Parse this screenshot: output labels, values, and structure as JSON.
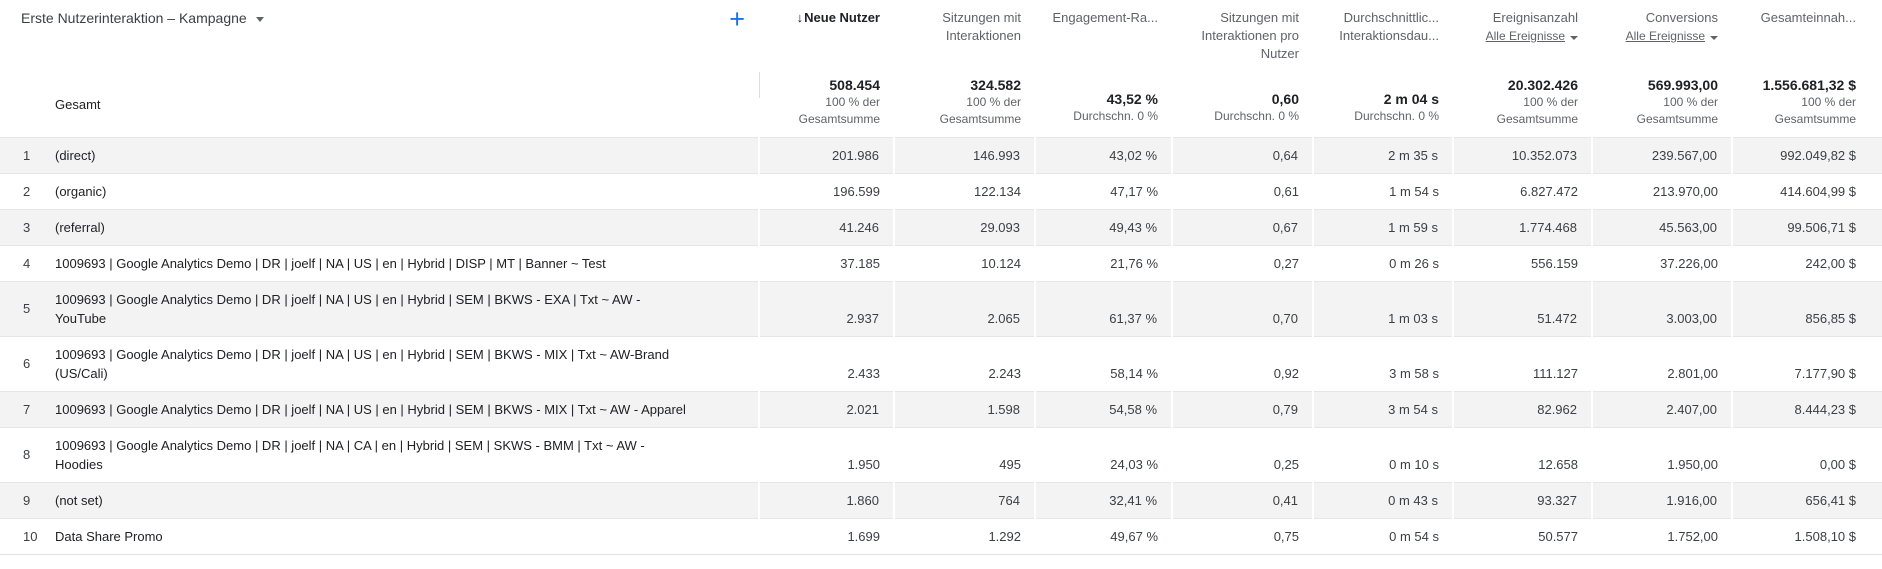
{
  "colors": {
    "accent_blue": "#1a73e8",
    "zebra_row": "#f3f3f3",
    "header_text": "#5f6368"
  },
  "icons": {
    "add": "+",
    "sort_desc": "↓"
  },
  "header": {
    "dimension_label": "Erste Nutzerinteraktion – Kampagne",
    "columns": [
      {
        "lines": [
          "Neue Nutzer"
        ],
        "sorted": true
      },
      {
        "lines": [
          "Sitzungen mit",
          "Interaktionen"
        ]
      },
      {
        "lines": [
          "Engagement-Ra..."
        ]
      },
      {
        "lines": [
          "Sitzungen mit",
          "Interaktionen pro",
          "Nutzer"
        ]
      },
      {
        "lines": [
          "Durchschnittlic...",
          "Interaktionsdau..."
        ]
      },
      {
        "lines": [
          "Ereignisanzahl"
        ],
        "filter": "Alle Ereignisse"
      },
      {
        "lines": [
          "Conversions"
        ],
        "filter": "Alle Ereignisse"
      },
      {
        "lines": [
          "Gesamteinnah..."
        ]
      }
    ]
  },
  "totals": {
    "label": "Gesamt",
    "metrics": [
      {
        "value": "508.454",
        "sub": [
          "100 % der",
          "Gesamtsumme"
        ]
      },
      {
        "value": "324.582",
        "sub": [
          "100 % der",
          "Gesamtsumme"
        ]
      },
      {
        "value": "43,52 %",
        "sub": [
          "Durchschn. 0 %"
        ]
      },
      {
        "value": "0,60",
        "sub": [
          "Durchschn. 0 %"
        ]
      },
      {
        "value": "2 m 04 s",
        "sub": [
          "Durchschn. 0 %"
        ]
      },
      {
        "value": "20.302.426",
        "sub": [
          "100 % der",
          "Gesamtsumme"
        ]
      },
      {
        "value": "569.993,00",
        "sub": [
          "100 % der",
          "Gesamtsumme"
        ]
      },
      {
        "value": "1.556.681,32 $",
        "sub": [
          "100 % der",
          "Gesamtsumme"
        ]
      }
    ]
  },
  "rows": [
    {
      "index": "1",
      "name_lines": [
        "(direct)"
      ],
      "values": [
        "201.986",
        "146.993",
        "43,02 %",
        "0,64",
        "2 m 35 s",
        "10.352.073",
        "239.567,00",
        "992.049,82 $"
      ]
    },
    {
      "index": "2",
      "name_lines": [
        "(organic)"
      ],
      "values": [
        "196.599",
        "122.134",
        "47,17 %",
        "0,61",
        "1 m 54 s",
        "6.827.472",
        "213.970,00",
        "414.604,99 $"
      ]
    },
    {
      "index": "3",
      "name_lines": [
        "(referral)"
      ],
      "values": [
        "41.246",
        "29.093",
        "49,43 %",
        "0,67",
        "1 m 59 s",
        "1.774.468",
        "45.563,00",
        "99.506,71 $"
      ]
    },
    {
      "index": "4",
      "name_lines": [
        "1009693 | Google Analytics Demo | DR | joelf | NA | US | en | Hybrid | DISP | MT | Banner ~ Test"
      ],
      "values": [
        "37.185",
        "10.124",
        "21,76 %",
        "0,27",
        "0 m 26 s",
        "556.159",
        "37.226,00",
        "242,00 $"
      ]
    },
    {
      "index": "5",
      "name_lines": [
        "1009693 | Google Analytics Demo | DR | joelf | NA | US | en | Hybrid | SEM | BKWS - EXA | Txt ~ AW -",
        "YouTube"
      ],
      "values": [
        "2.937",
        "2.065",
        "61,37 %",
        "0,70",
        "1 m 03 s",
        "51.472",
        "3.003,00",
        "856,85 $"
      ]
    },
    {
      "index": "6",
      "name_lines": [
        "1009693 | Google Analytics Demo | DR | joelf | NA | US | en | Hybrid | SEM | BKWS - MIX | Txt ~ AW-Brand",
        "(US/Cali)"
      ],
      "values": [
        "2.433",
        "2.243",
        "58,14 %",
        "0,92",
        "3 m 58 s",
        "111.127",
        "2.801,00",
        "7.177,90 $"
      ]
    },
    {
      "index": "7",
      "name_lines": [
        "1009693 | Google Analytics Demo | DR | joelf | NA | US | en | Hybrid | SEM | BKWS - MIX | Txt ~ AW - Apparel"
      ],
      "values": [
        "2.021",
        "1.598",
        "54,58 %",
        "0,79",
        "3 m 54 s",
        "82.962",
        "2.407,00",
        "8.444,23 $"
      ]
    },
    {
      "index": "8",
      "name_lines": [
        "1009693 | Google Analytics Demo | DR | joelf | NA | CA | en | Hybrid | SEM | SKWS - BMM | Txt ~ AW -",
        "Hoodies"
      ],
      "values": [
        "1.950",
        "495",
        "24,03 %",
        "0,25",
        "0 m 10 s",
        "12.658",
        "1.950,00",
        "0,00 $"
      ]
    },
    {
      "index": "9",
      "name_lines": [
        "(not set)"
      ],
      "values": [
        "1.860",
        "764",
        "32,41 %",
        "0,41",
        "0 m 43 s",
        "93.327",
        "1.916,00",
        "656,41 $"
      ]
    },
    {
      "index": "10",
      "name_lines": [
        "Data Share Promo"
      ],
      "values": [
        "1.699",
        "1.292",
        "49,67 %",
        "0,75",
        "0 m 54 s",
        "50.577",
        "1.752,00",
        "1.508,10 $"
      ]
    }
  ]
}
